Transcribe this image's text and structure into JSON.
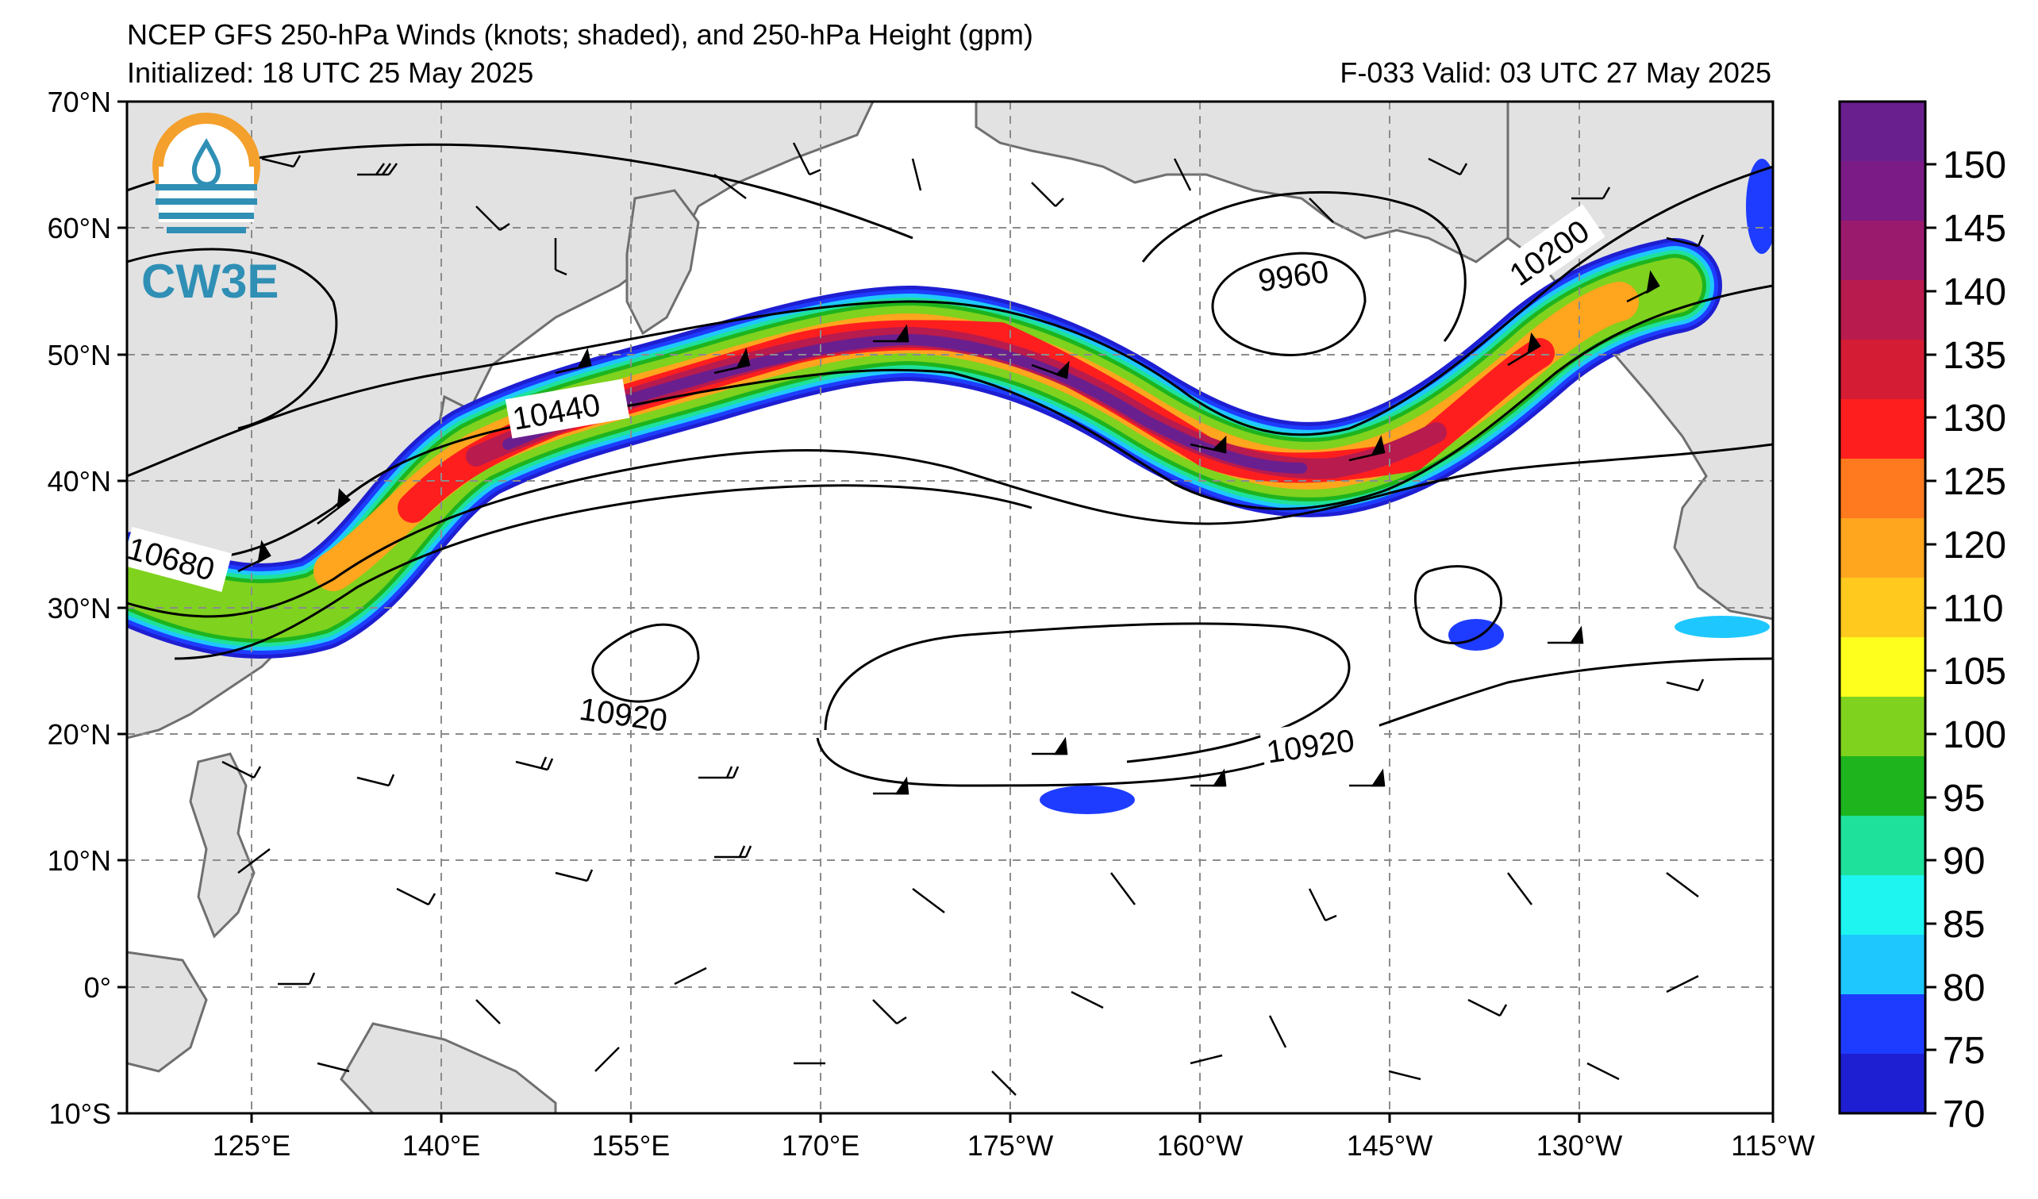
{
  "header": {
    "title": "NCEP GFS 250-hPa Winds (knots; shaded), and 250-hPa Height (gpm)",
    "initialized": "Initialized: 18 UTC 25 May 2025",
    "valid": "F-033  Valid: 03 UTC 27 May 2025"
  },
  "logo": {
    "text": "CW3E"
  },
  "map": {
    "lat_labels": [
      "70°N",
      "60°N",
      "50°N",
      "40°N",
      "30°N",
      "20°N",
      "10°N",
      "0°",
      "10°S"
    ],
    "lon_labels": [
      "125°E",
      "140°E",
      "155°E",
      "170°E",
      "175°W",
      "160°W",
      "145°W",
      "130°W",
      "115°W"
    ],
    "contour_labels": [
      "10440",
      "10680",
      "10920",
      "9960",
      "10200",
      "10920"
    ]
  },
  "colorbar": {
    "ticks": [
      "150",
      "145",
      "140",
      "135",
      "130",
      "125",
      "120",
      "110",
      "105",
      "100",
      "95",
      "90",
      "85",
      "80",
      "75",
      "70"
    ],
    "colors": [
      "#6a1f8f",
      "#7b1b86",
      "#9a1a6e",
      "#b81b4e",
      "#d41c35",
      "#ff1e1e",
      "#ff7a1e",
      "#ffa51e",
      "#ffc91e",
      "#ffff1e",
      "#7fd21e",
      "#1eb41e",
      "#1ee19b",
      "#1ef5f0",
      "#1ec8ff",
      "#1e3cff",
      "#1e1ed2"
    ]
  }
}
